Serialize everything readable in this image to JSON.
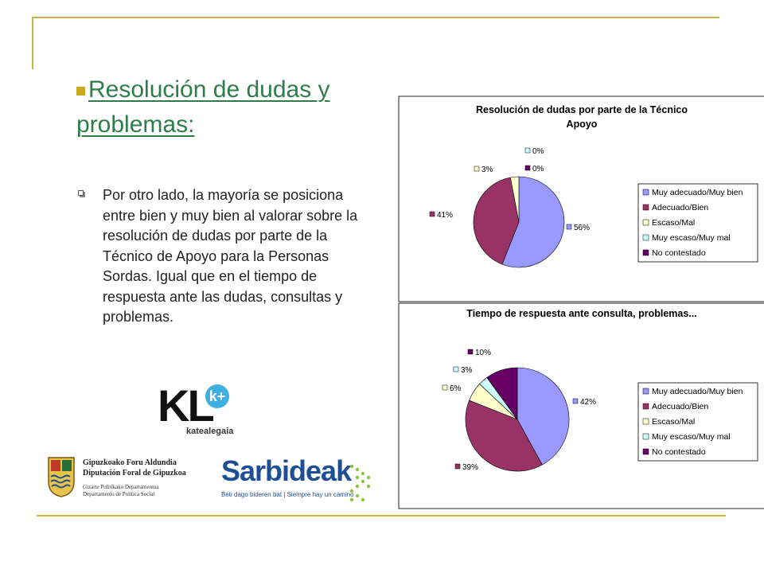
{
  "slide": {
    "title": "Resolución de dudas y problemas:",
    "paragraph": "Por otro lado, la mayoría se posiciona entre bien y muy bien al valorar sobre la resolución de dudas por parte de la Técnico de Apoyo para la Personas Sordas. Igual que en el tiempo de respuesta ante las dudas, consultas y problemas."
  },
  "logos": {
    "kl_letters": "KL",
    "kl_badge": "k+",
    "kl_sub": "katealegaia",
    "gipuzkoa_line1": "Gipuzkoako Foru Aldundia",
    "gipuzkoa_line2": "Diputación Foral de Gipuzkoa",
    "gipuzkoa_line3": "Gizarte Politikako Departamentua",
    "gipuzkoa_line4": "Departamento de Política Social",
    "sarbideak_name": "Sarbideak",
    "sarbideak_tagline": "Beti dago bideren bat | Siempre hay un camino"
  },
  "colors": {
    "accent_gold": "#c9b24a",
    "title_green": "#2e7d4a",
    "series": [
      "#9999ff",
      "#993366",
      "#ffffcc",
      "#ccffff",
      "#660066"
    ]
  },
  "chart_data": [
    {
      "type": "pie",
      "title": "Resolución de dudas por parte de la Técnico de Apoyo",
      "categories": [
        "Muy adecuado/Muy bien",
        "Adecuado/Bien",
        "Escaso/Mal",
        "Muy escaso/Muy mal",
        "No contestado"
      ],
      "values": [
        56,
        41,
        3,
        0,
        0
      ],
      "labels": [
        "56%",
        "41%",
        "3%",
        "0%",
        "0%"
      ],
      "legend": "right"
    },
    {
      "type": "pie",
      "title": "Tiempo de respuesta ante consulta, problemas...",
      "categories": [
        "Muy adecuado/Muy bien",
        "Adecuado/Bien",
        "Escaso/Mal",
        "Muy escaso/Muy mal",
        "No contestado"
      ],
      "values": [
        42,
        39,
        6,
        3,
        10
      ],
      "labels": [
        "42%",
        "39%",
        "6%",
        "3%",
        "10%"
      ],
      "legend": "right"
    }
  ]
}
